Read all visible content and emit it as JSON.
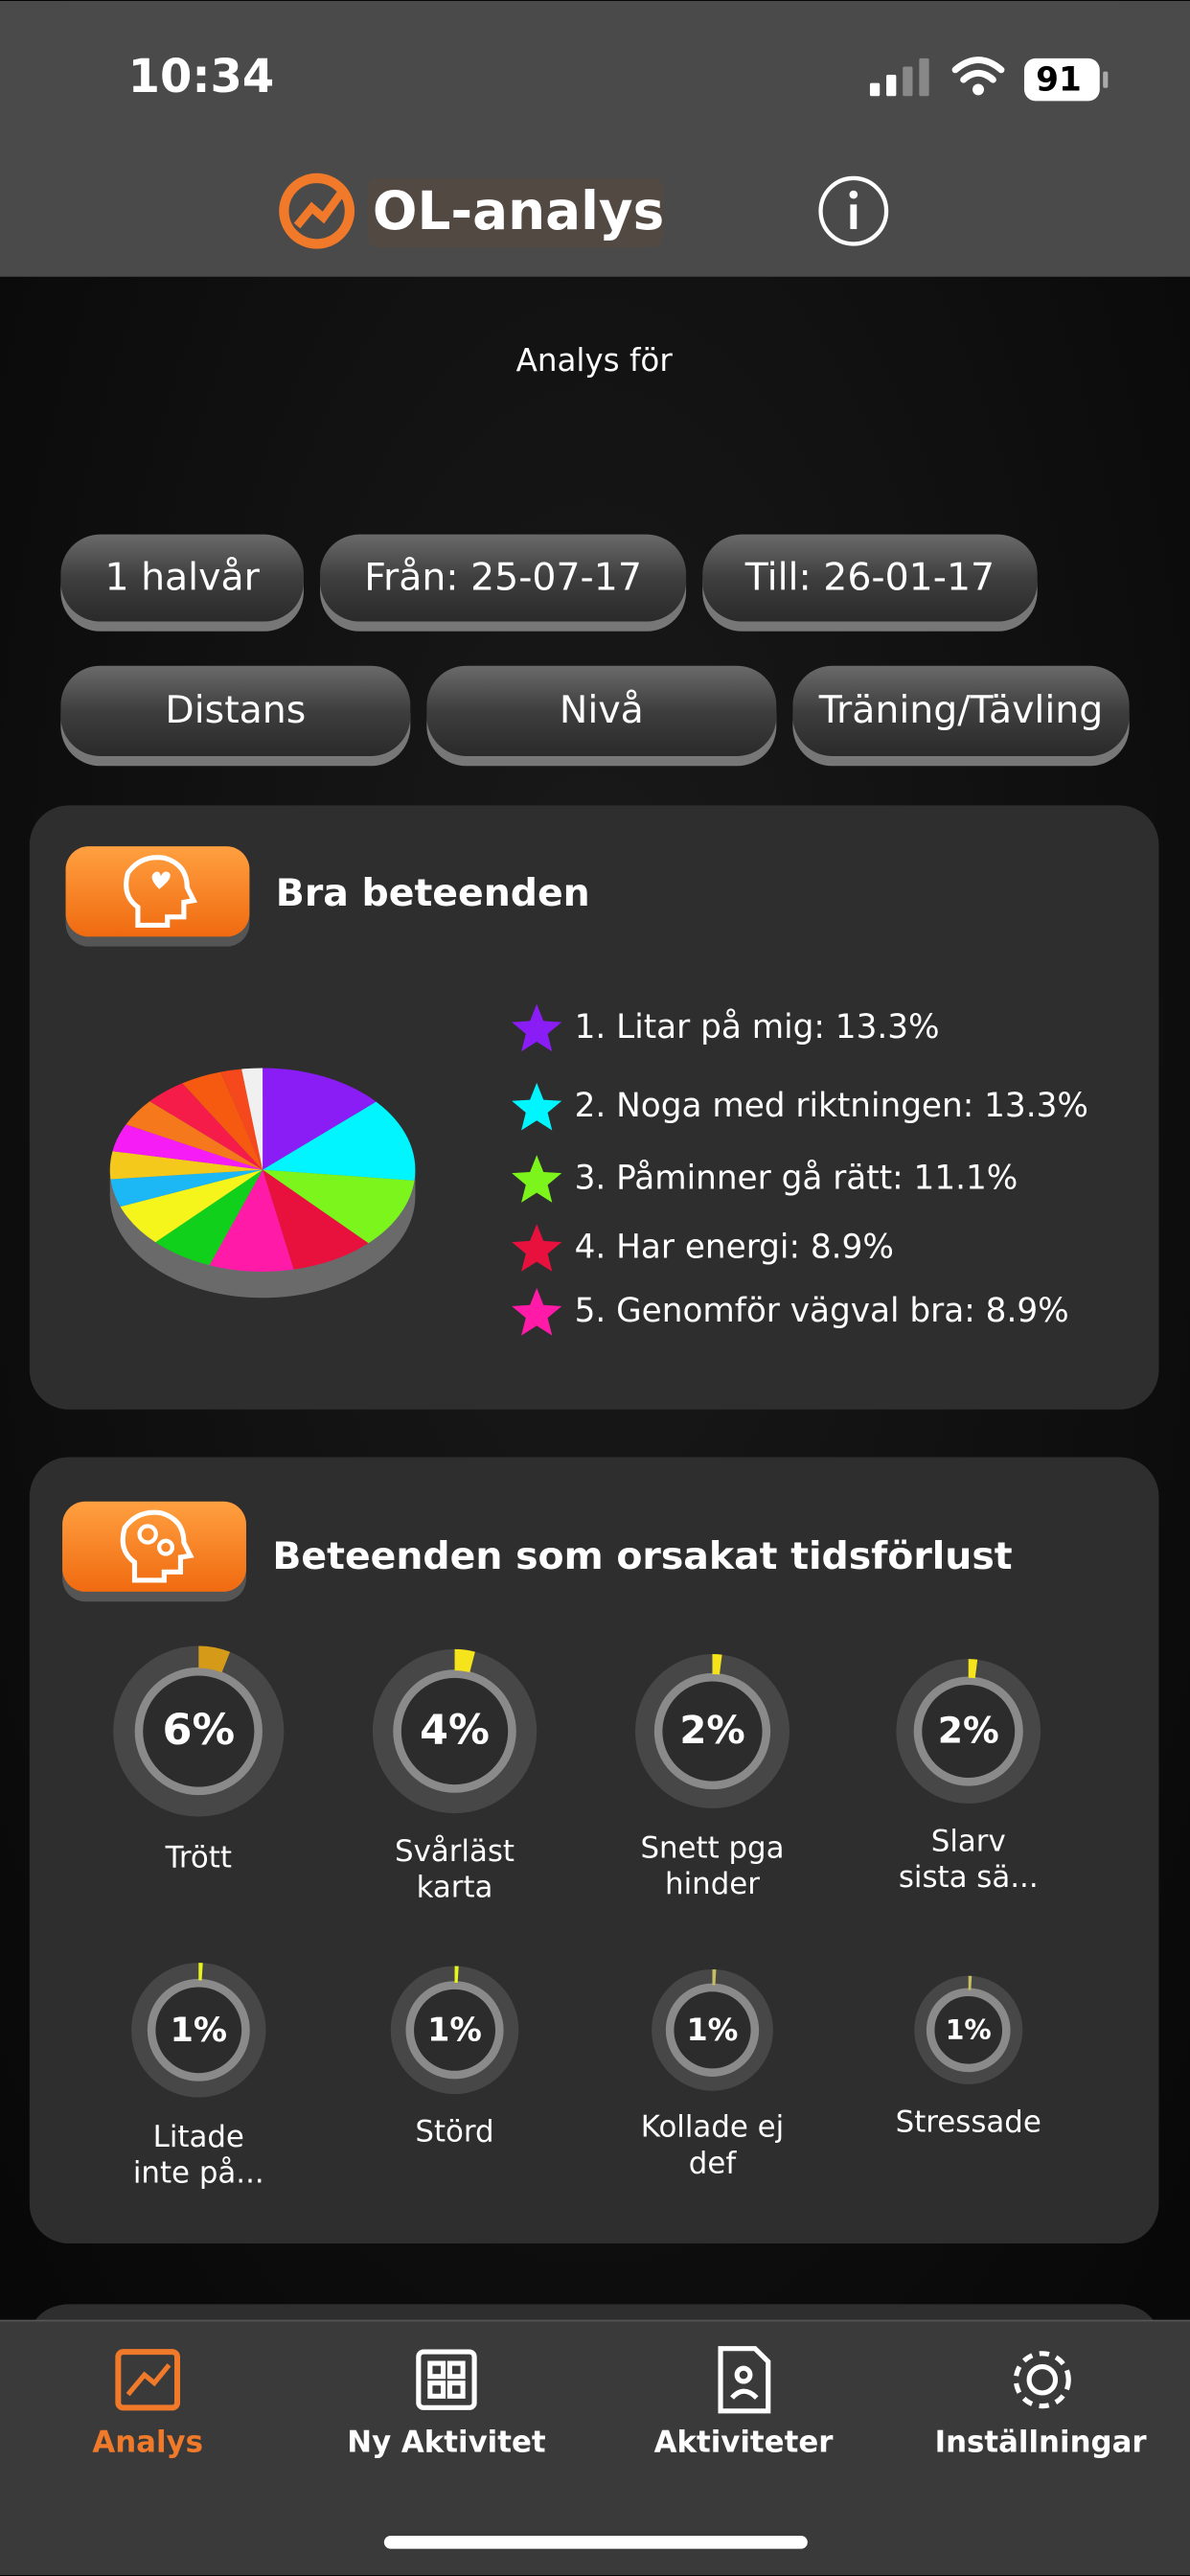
{
  "status_bar": {
    "time": "10:34",
    "battery": "91"
  },
  "header": {
    "title": "OL-analys"
  },
  "subtitle": "Analys för",
  "filters": {
    "row1": [
      "1 halvår",
      "Från: 25-07-17",
      "Till: 26-01-17"
    ],
    "row2": [
      "Distans",
      "Nivå",
      "Träning/Tävling"
    ]
  },
  "good_behaviors": {
    "title": "Bra beteenden",
    "chart_data": {
      "type": "pie",
      "categories": [
        "1. Litar på mig: 13.3%",
        "2. Noga med riktningen: 13.3%",
        "3. Påminner gå rätt: 11.1%",
        "4. Har energi: 8.9%",
        "5. Genomför vägval bra: 8.9%",
        null,
        null,
        null,
        null,
        null,
        null,
        null,
        null,
        null,
        null
      ],
      "values": [
        13.3,
        13.3,
        11.1,
        8.9,
        8.9,
        6.7,
        6.7,
        4.4,
        4.4,
        4.4,
        4.4,
        4.4,
        4.4,
        2.2,
        2.2
      ],
      "colors": [
        "#8a1cf5",
        "#00f5ff",
        "#7cf51c",
        "#e8103c",
        "#ff1aa8",
        "#10d01c",
        "#f5f51c",
        "#1cb8f5",
        "#f5c81c",
        "#f51cf5",
        "#f5781c",
        "#f51c4a",
        "#f55a10",
        "#f5481c",
        "#f0f0f0"
      ]
    }
  },
  "time_loss": {
    "title": "Beteenden som orsakat tidsförlust",
    "items": [
      {
        "value": 6,
        "value_label": "6%",
        "label": [
          "Trött"
        ],
        "color": "#d49a18"
      },
      {
        "value": 4,
        "value_label": "4%",
        "label": [
          "Svårläst",
          "karta"
        ],
        "color": "#f5e31c"
      },
      {
        "value": 2,
        "value_label": "2%",
        "label": [
          "Snett pga",
          "hinder"
        ],
        "color": "#f5e31c"
      },
      {
        "value": 2,
        "value_label": "2%",
        "label": [
          "Slarv",
          "sista sä..."
        ],
        "color": "#f5e31c"
      },
      {
        "value": 1,
        "value_label": "1%",
        "label": [
          "Litade",
          "inte på..."
        ],
        "color": "#e8f51c"
      },
      {
        "value": 1,
        "value_label": "1%",
        "label": [
          "Störd"
        ],
        "color": "#e8f51c"
      },
      {
        "value": 1,
        "value_label": "1%",
        "label": [
          "Kollade ej",
          "def"
        ],
        "color": "#c8c060"
      },
      {
        "value": 1,
        "value_label": "1%",
        "label": [
          "Stressade"
        ],
        "color": "#c8c060"
      }
    ]
  },
  "tabs": [
    {
      "label": "Analys",
      "active": true
    },
    {
      "label": "Ny Aktivitet",
      "active": false
    },
    {
      "label": "Aktiviteter",
      "active": false
    },
    {
      "label": "Inställningar",
      "active": false
    }
  ]
}
